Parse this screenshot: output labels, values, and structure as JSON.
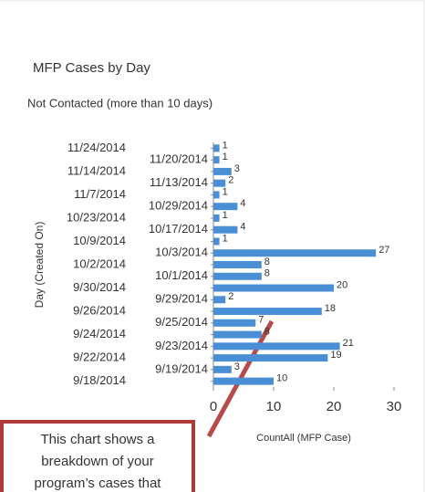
{
  "chart_data": {
    "type": "bar",
    "orientation": "horizontal",
    "title": "MFP Cases by Day",
    "subtitle": "Not Contacted (more than 10 days)",
    "y_label": "Day (Created On)",
    "x_label": "CountAll (MFP Case)",
    "categories": [
      "11/24/2014",
      "11/20/2014",
      "11/14/2014",
      "11/13/2014",
      "11/7/2014",
      "10/29/2014",
      "10/23/2014",
      "10/17/2014",
      "10/9/2014",
      "10/3/2014",
      "10/2/2014",
      "10/1/2014",
      "9/30/2014",
      "9/29/2014",
      "9/26/2014",
      "9/25/2014",
      "9/24/2014",
      "9/23/2014",
      "9/22/2014",
      "9/19/2014",
      "9/18/2014"
    ],
    "values": [
      1,
      1,
      3,
      2,
      1,
      4,
      1,
      4,
      1,
      27,
      8,
      8,
      20,
      2,
      18,
      7,
      8,
      21,
      19,
      3,
      10
    ],
    "color": "#4a8fd6",
    "xlim": [
      0,
      30
    ],
    "xticks": [
      0,
      10,
      20,
      30
    ],
    "annotation": [
      "This chart shows a",
      "breakdown of your",
      "program’s cases that"
    ]
  }
}
